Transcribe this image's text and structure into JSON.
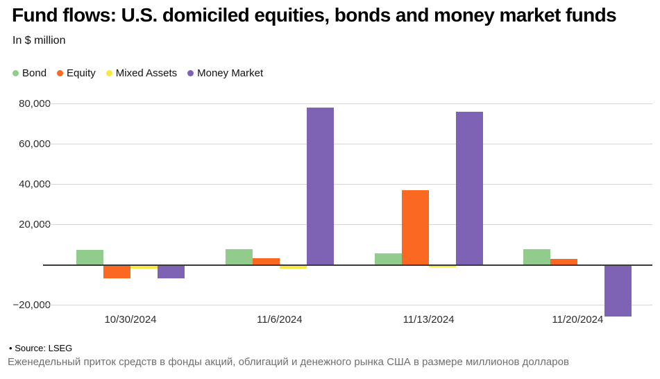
{
  "header": {
    "title": "Fund flows: U.S. domiciled equities, bonds and money market funds",
    "subtitle": "In $ million"
  },
  "chart_data": {
    "type": "bar",
    "title": "Fund flows: U.S. domiciled equities, bonds and money market funds",
    "xlabel": "",
    "ylabel": "In $ million",
    "categories": [
      "10/30/2024",
      "11/6/2024",
      "11/13/2024",
      "11/20/2024"
    ],
    "series": [
      {
        "name": "Bond",
        "color": "#92CC8C",
        "values": [
          7300,
          7800,
          5600,
          7700
        ]
      },
      {
        "name": "Equity",
        "color": "#FB6822",
        "values": [
          -6200,
          3200,
          37000,
          2800
        ]
      },
      {
        "name": "Mixed Assets",
        "color": "#F9E93C",
        "values": [
          -1200,
          -1500,
          -700,
          0
        ]
      },
      {
        "name": "Money Market",
        "color": "#7E63B4",
        "values": [
          -6200,
          78000,
          76000,
          -25000
        ]
      }
    ],
    "ylim": [
      -32000,
      88000
    ],
    "yticks": [
      80000,
      60000,
      40000,
      20000,
      -20000
    ],
    "ytick_labels": [
      "80,000",
      "60,000",
      "40,000",
      "20,000",
      "−20,000"
    ],
    "grid": true,
    "legend_position": "top",
    "zero_line_color": "#3a3a3a",
    "gridline_color": "#d6d6d6"
  },
  "footer": {
    "bullet": "•",
    "source": "Source: LSEG",
    "caption": "Еженедельный приток средств в фонды акций, облигаций и денежного рынка США в размере миллионов долларов"
  }
}
